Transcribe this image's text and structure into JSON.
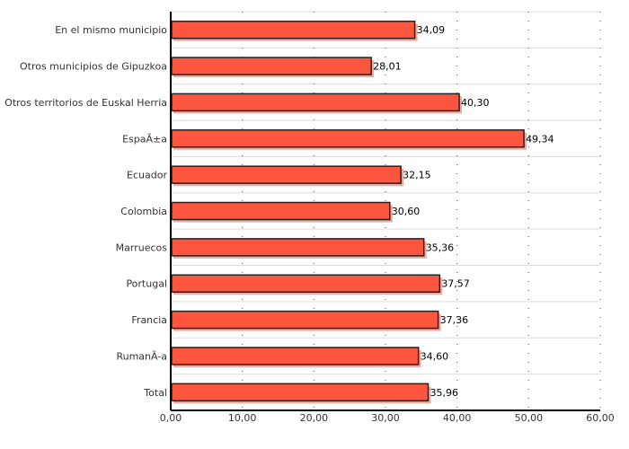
{
  "chart_data": {
    "type": "bar",
    "orientation": "horizontal",
    "categories": [
      "En el mismo municipio",
      "Otros municipios de Gipuzkoa",
      "Otros territorios de Euskal Herria",
      "EspaÃ±a",
      "Ecuador",
      "Colombia",
      "Marruecos",
      "Portugal",
      "Francia",
      "RumanÃ-a",
      "Total"
    ],
    "values": [
      34.09,
      28.01,
      40.3,
      49.34,
      32.15,
      30.6,
      35.36,
      37.57,
      37.36,
      34.6,
      35.96
    ],
    "value_labels": [
      "34,09",
      "28,01",
      "40,30",
      "49,34",
      "32,15",
      "30,60",
      "35,36",
      "37,57",
      "37,36",
      "34,60",
      "35,96"
    ],
    "xlim": [
      0,
      60
    ],
    "xticks": [
      0,
      10,
      20,
      30,
      40,
      50,
      60
    ],
    "xtick_labels": [
      "0,00",
      "10,00",
      "20,00",
      "30,00",
      "40,00",
      "50,00",
      "60,00"
    ],
    "title": "",
    "xlabel": "",
    "ylabel": "",
    "grid": true,
    "bar_color": "#fc573e",
    "bar_edge_color": "#222222"
  }
}
